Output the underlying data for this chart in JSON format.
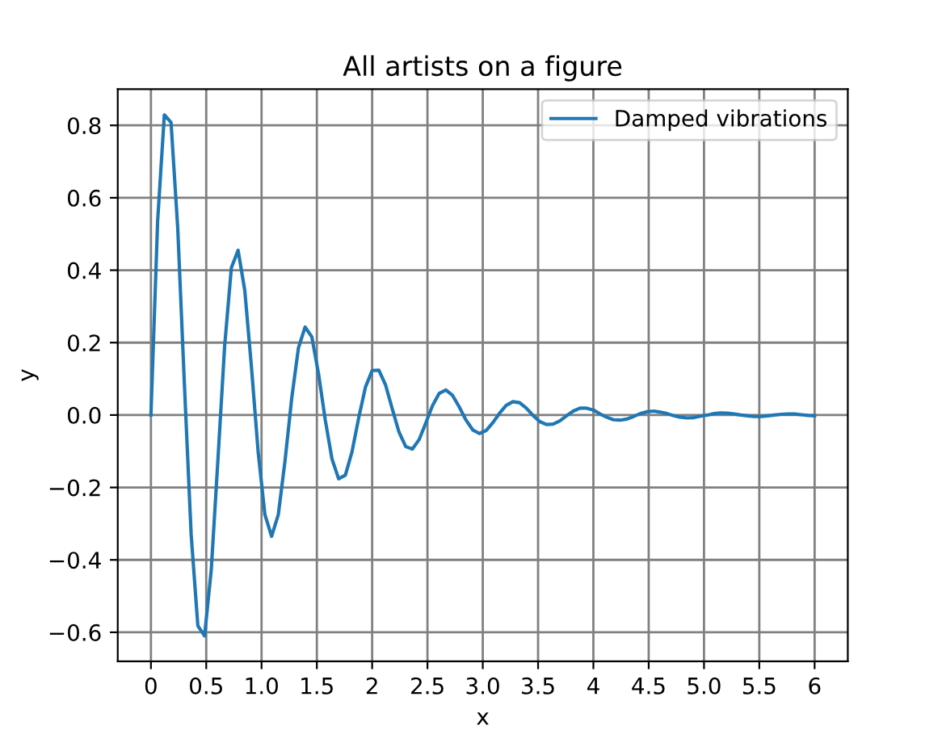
{
  "chart_data": {
    "type": "line",
    "title": "All artists on a figure",
    "xlabel": "x",
    "ylabel": "y",
    "x": [
      0,
      0.0606,
      0.1212,
      0.1818,
      0.2424,
      0.303,
      0.3636,
      0.4242,
      0.4848,
      0.5455,
      0.6061,
      0.6667,
      0.7273,
      0.7879,
      0.8485,
      0.9091,
      0.9697,
      1.0303,
      1.0909,
      1.1515,
      1.2121,
      1.2727,
      1.3333,
      1.3939,
      1.4545,
      1.5152,
      1.5758,
      1.6364,
      1.697,
      1.7576,
      1.8182,
      1.8788,
      1.9394,
      2.0,
      2.0606,
      2.1212,
      2.1818,
      2.2424,
      2.303,
      2.3636,
      2.4242,
      2.4848,
      2.5455,
      2.6061,
      2.6667,
      2.7273,
      2.7879,
      2.8485,
      2.9091,
      2.9697,
      3.0303,
      3.0909,
      3.1515,
      3.2121,
      3.2727,
      3.3333,
      3.3939,
      3.4545,
      3.5152,
      3.5758,
      3.6364,
      3.697,
      3.7576,
      3.8182,
      3.8788,
      3.9394,
      4.0,
      4.0606,
      4.1212,
      4.1818,
      4.2424,
      4.303,
      4.3636,
      4.4242,
      4.4848,
      4.5455,
      4.6061,
      4.6667,
      4.7273,
      4.7879,
      4.8485,
      4.9091,
      4.9697,
      5.0303,
      5.0909,
      5.1515,
      5.2121,
      5.2727,
      5.3333,
      5.3939,
      5.4545,
      5.5152,
      5.5758,
      5.6364,
      5.697,
      5.7576,
      5.8182,
      5.8788,
      5.9394,
      6.0
    ],
    "series": [
      {
        "name": "Damped vibrations",
        "color": "#1f77b4",
        "values": [
          0,
          0.536,
          0.829,
          0.808,
          0.516,
          0.082,
          -0.33,
          -0.582,
          -0.61,
          -0.427,
          -0.121,
          0.192,
          0.407,
          0.455,
          0.344,
          0.131,
          -0.103,
          -0.275,
          -0.335,
          -0.275,
          -0.127,
          0.046,
          0.185,
          0.243,
          0.216,
          0.114,
          -0.013,
          -0.121,
          -0.176,
          -0.166,
          -0.101,
          -0.007,
          0.077,
          0.123,
          0.124,
          0.083,
          0.017,
          -0.047,
          -0.087,
          -0.094,
          -0.068,
          -0.022,
          0.026,
          0.06,
          0.069,
          0.054,
          0.022,
          -0.014,
          -0.041,
          -0.051,
          -0.043,
          -0.021,
          0.005,
          0.027,
          0.037,
          0.034,
          0.019,
          -0.001,
          -0.018,
          -0.026,
          -0.025,
          -0.016,
          -0.002,
          0.011,
          0.019,
          0.019,
          0.014,
          0.003,
          -0.006,
          -0.013,
          -0.014,
          -0.011,
          -0.004,
          0.004,
          0.009,
          0.011,
          0.008,
          0.004,
          -0.002,
          -0.006,
          -0.008,
          -0.007,
          -0.003,
          0.0,
          0.004,
          0.006,
          0.005,
          0.003,
          0.0,
          -0.002,
          -0.004,
          -0.004,
          -0.002,
          0.0,
          0.002,
          0.003,
          0.003,
          0.001,
          -0.001,
          -0.002
        ]
      }
    ],
    "xlim": [
      -0.3,
      6.3
    ],
    "ylim": [
      -0.68,
      0.9
    ],
    "xticks": [
      0,
      0.5,
      {
        "value": 1,
        "label": "1.0"
      },
      1.5,
      2,
      2.5,
      {
        "value": 3,
        "label": "3.0"
      },
      3.5,
      4,
      4.5,
      {
        "value": 5,
        "label": "5.0"
      },
      5.5,
      6
    ],
    "yticks": [
      {
        "value": -0.6,
        "label": "−0.6"
      },
      {
        "value": -0.4,
        "label": "−0.4"
      },
      {
        "value": -0.2,
        "label": "−0.2"
      },
      {
        "value": 0,
        "label": "0.0"
      },
      0.2,
      0.4,
      0.6,
      0.8
    ],
    "grid": true,
    "legend": "top right",
    "marker": "none",
    "line_style": "solid"
  }
}
